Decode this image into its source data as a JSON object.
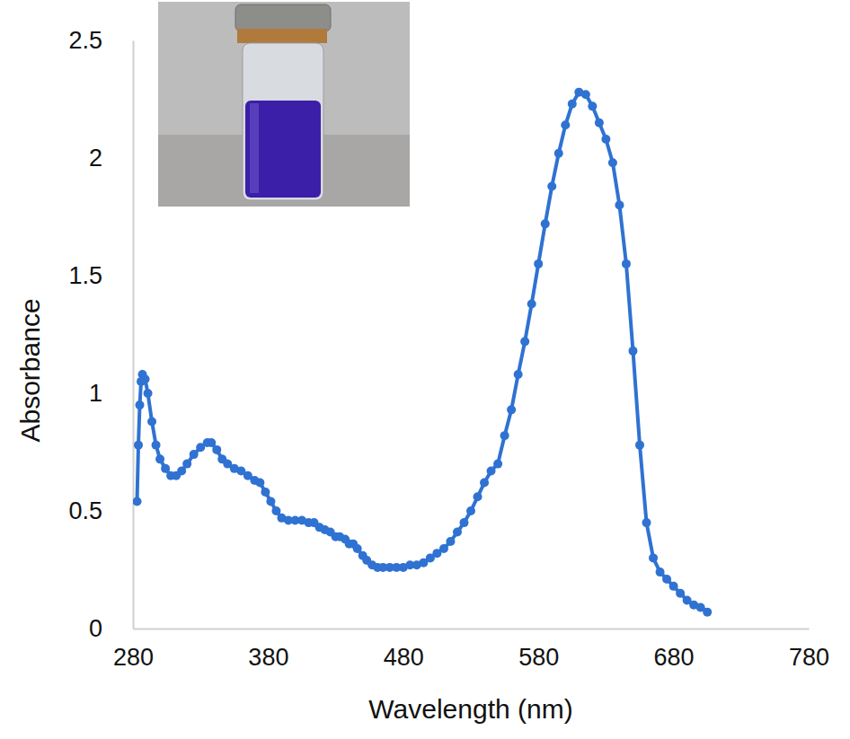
{
  "chart_data": {
    "type": "line",
    "x_label": "Wavelength (nm)",
    "y_label": "Absorbance",
    "xlim": [
      280,
      780
    ],
    "xticks": [
      280,
      380,
      480,
      580,
      680,
      780
    ],
    "ylim": [
      0,
      2.5
    ],
    "yticks": [
      0,
      0.5,
      1,
      1.5,
      2,
      2.5
    ],
    "grid": false,
    "marker": "circle",
    "color": "#2f72d2",
    "x": [
      283,
      284,
      285,
      286,
      287,
      289,
      291,
      294,
      297,
      300,
      304,
      308,
      312,
      316,
      320,
      325,
      330,
      335,
      338,
      342,
      346,
      350,
      355,
      360,
      365,
      370,
      374,
      378,
      382,
      386,
      390,
      395,
      400,
      405,
      410,
      414,
      418,
      422,
      426,
      430,
      433,
      437,
      440,
      443,
      446,
      450,
      453,
      457,
      461,
      465,
      470,
      475,
      480,
      485,
      490,
      495,
      500,
      505,
      510,
      515,
      520,
      525,
      530,
      535,
      540,
      545,
      550,
      555,
      560,
      565,
      570,
      575,
      580,
      585,
      590,
      595,
      600,
      605,
      610,
      615,
      620,
      625,
      630,
      635,
      640,
      645,
      650,
      655,
      660,
      665,
      670,
      675,
      680,
      685,
      690,
      695,
      700,
      705
    ],
    "values": [
      0.54,
      0.78,
      0.95,
      1.05,
      1.08,
      1.06,
      1.0,
      0.88,
      0.78,
      0.72,
      0.68,
      0.65,
      0.65,
      0.67,
      0.7,
      0.74,
      0.77,
      0.79,
      0.79,
      0.76,
      0.72,
      0.7,
      0.68,
      0.67,
      0.65,
      0.63,
      0.62,
      0.58,
      0.54,
      0.5,
      0.47,
      0.46,
      0.46,
      0.46,
      0.45,
      0.45,
      0.43,
      0.42,
      0.41,
      0.39,
      0.39,
      0.38,
      0.36,
      0.36,
      0.34,
      0.31,
      0.29,
      0.27,
      0.26,
      0.26,
      0.26,
      0.26,
      0.26,
      0.27,
      0.27,
      0.28,
      0.3,
      0.32,
      0.34,
      0.37,
      0.41,
      0.45,
      0.5,
      0.56,
      0.62,
      0.67,
      0.7,
      0.82,
      0.93,
      1.08,
      1.22,
      1.38,
      1.55,
      1.72,
      1.88,
      2.02,
      2.14,
      2.23,
      2.28,
      2.27,
      2.22,
      2.15,
      2.08,
      1.98,
      1.8,
      1.55,
      1.18,
      0.78,
      0.45,
      0.3,
      0.24,
      0.21,
      0.18,
      0.15,
      0.12,
      0.1,
      0.09,
      0.07
    ]
  }
}
